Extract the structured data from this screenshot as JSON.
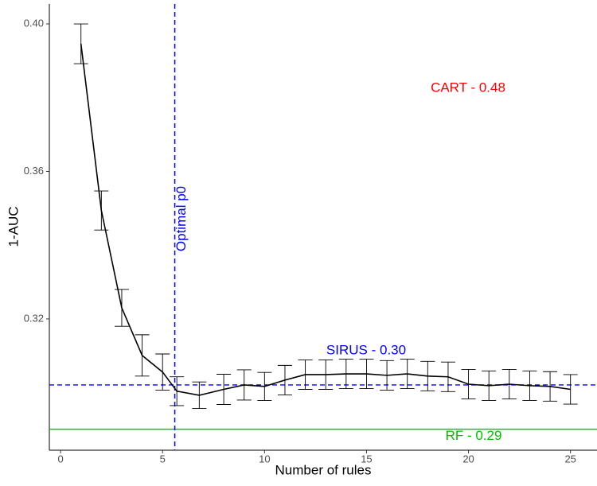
{
  "chart_data": {
    "type": "line",
    "x_label": "Number of rules",
    "y_label": "1-AUC",
    "x": [
      1,
      2,
      3,
      4,
      5,
      5.7,
      6.8,
      8,
      9,
      10,
      11,
      12,
      13,
      14,
      15,
      16,
      17,
      18,
      19,
      20,
      21,
      22,
      23,
      24,
      25
    ],
    "series": [
      {
        "color": "#000000",
        "values": [
          0.3946,
          0.3494,
          0.323,
          0.3101,
          0.3056,
          0.3004,
          0.2993,
          0.3009,
          0.3021,
          0.3017,
          0.3034,
          0.3049,
          0.3049,
          0.3051,
          0.3051,
          0.3047,
          0.3051,
          0.3045,
          0.3043,
          0.3023,
          0.3019,
          0.3023,
          0.3019,
          0.3017,
          0.3009
        ],
        "errors": [
          0.0054,
          0.0053,
          0.005,
          0.0056,
          0.0049,
          0.0039,
          0.0036,
          0.0041,
          0.0041,
          0.0038,
          0.004,
          0.004,
          0.004,
          0.004,
          0.004,
          0.004,
          0.004,
          0.004,
          0.004,
          0.004,
          0.004,
          0.004,
          0.004,
          0.004,
          0.004
        ]
      }
    ],
    "xlim": [
      -0.55,
      26.3
    ],
    "ylim": [
      0.2844,
      0.4054
    ],
    "xticks": [
      0,
      5,
      10,
      15,
      20,
      25
    ],
    "yticks": [
      0.32,
      0.36,
      {
        "value": 0.4,
        "label": "0.40"
      }
    ],
    "hlines": [
      {
        "label": "SIRUS - 0.30",
        "value": 0.3021,
        "color": "#0000ff",
        "dashed": true
      },
      {
        "label": "RF - 0.29",
        "value": 0.2901,
        "color": "#00c000",
        "dashed": false
      }
    ],
    "vline": {
      "label": "Optimal p0",
      "value": 5.6,
      "color": "#0000ff"
    },
    "annotations": [
      {
        "text": "CART - 0.48",
        "color": "#ff0000"
      }
    ]
  }
}
